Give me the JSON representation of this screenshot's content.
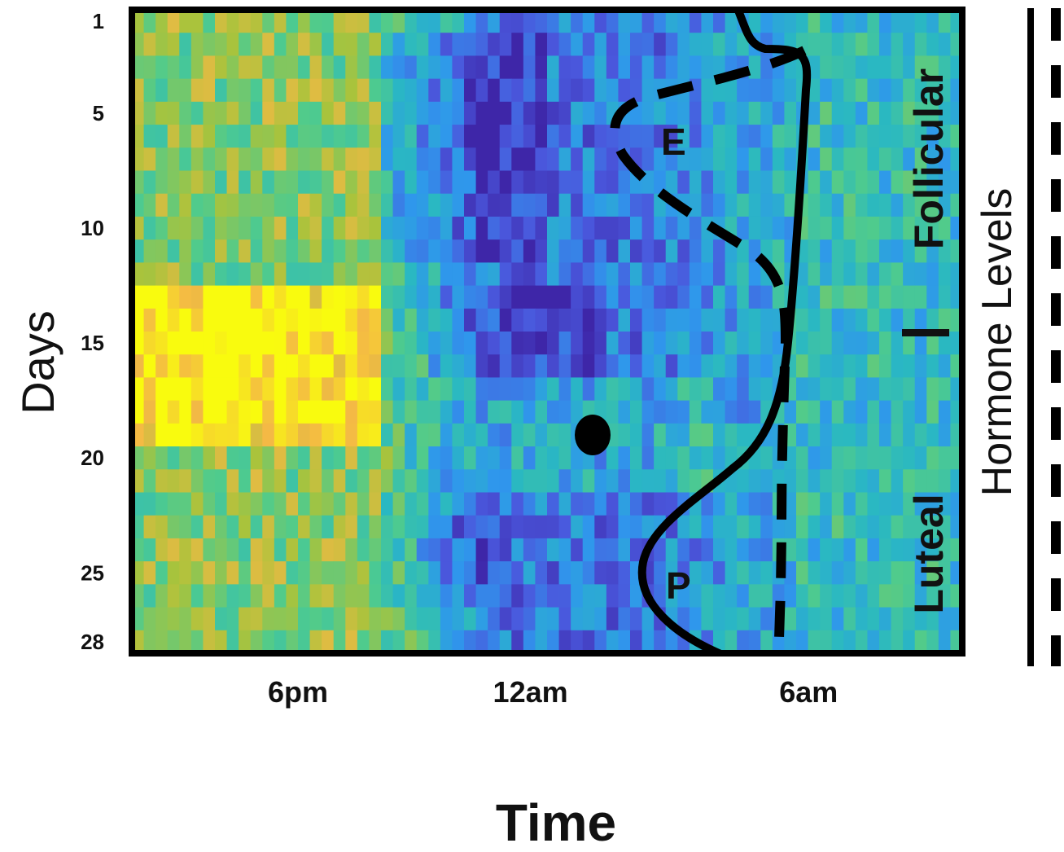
{
  "chart_data": {
    "type": "heatmap",
    "title": "",
    "xlabel": "Time",
    "ylabel": "Days",
    "x_ticks": [
      "6pm",
      "12am",
      "6am"
    ],
    "y_ticks": [
      1,
      5,
      10,
      15,
      20,
      25,
      28
    ],
    "ylim": [
      1,
      28
    ],
    "colormap": [
      "#3e26a8",
      "#4a58dd",
      "#2f97ec",
      "#2ab8c2",
      "#4fcb8d",
      "#a9c33c",
      "#f4b945",
      "#f9fb0e"
    ],
    "phase_labels": [
      "Follicular",
      "Luteal"
    ],
    "side_label": "Hormone Levels",
    "curve_labels": {
      "estrogen": "E",
      "progesterone": "P"
    },
    "series": [
      {
        "label": "E",
        "style": "dashed",
        "role": "estrogen"
      },
      {
        "label": "P",
        "style": "solid",
        "role": "progesterone"
      }
    ],
    "marker": {
      "style": "filled-dot",
      "day": 19,
      "time": "~1am"
    },
    "grid": false,
    "legend": "none"
  }
}
